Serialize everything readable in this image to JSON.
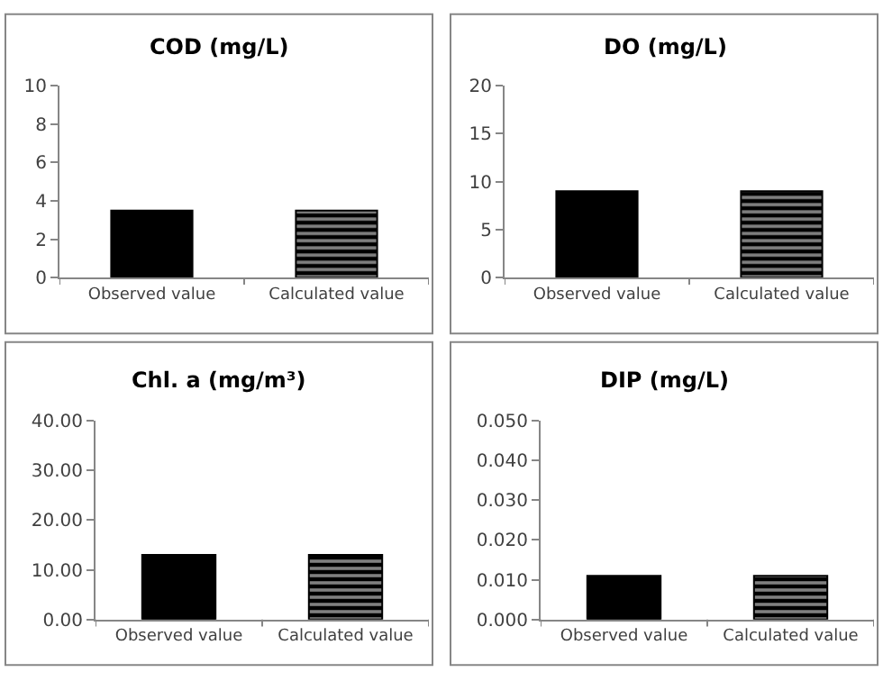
{
  "chart_data": [
    {
      "type": "bar",
      "title": "COD (mg/L)",
      "categories": [
        "Observed value",
        "Calculated value"
      ],
      "values": [
        3.5,
        3.5
      ],
      "colors": [
        "#000000",
        "#000000"
      ],
      "ylim": [
        0,
        10
      ],
      "yticks": [
        0,
        2,
        4,
        6,
        8,
        10
      ],
      "grid": false,
      "legend": false
    },
    {
      "type": "bar",
      "title": "DO (mg/L)",
      "categories": [
        "Observed value",
        "Calculated value"
      ],
      "values": [
        9,
        9
      ],
      "colors": [
        "#000000",
        "#000000"
      ],
      "ylim": [
        0,
        20
      ],
      "yticks": [
        0,
        5,
        10,
        15,
        20
      ],
      "grid": false,
      "legend": false
    },
    {
      "type": "bar",
      "title": "Chl. a (mg/m³)",
      "categories": [
        "Observed value",
        "Calculated value"
      ],
      "values": [
        13,
        13
      ],
      "colors": [
        "#000000",
        "#000000"
      ],
      "ylim": [
        0,
        40
      ],
      "yticks": [
        {
          "value": 0,
          "label": "0.00"
        },
        {
          "value": 10,
          "label": "10.00"
        },
        {
          "value": 20,
          "label": "20.00"
        },
        {
          "value": 30,
          "label": "30.00"
        },
        {
          "value": 40,
          "label": "40.00"
        }
      ],
      "grid": false,
      "legend": false
    },
    {
      "type": "bar",
      "title": "DIP (mg/L)",
      "categories": [
        "Observed value",
        "Calculated value"
      ],
      "values": [
        0.011,
        0.011
      ],
      "colors": [
        "#000000",
        "#000000"
      ],
      "ylim": [
        0,
        0.05
      ],
      "yticks": [
        {
          "value": 0,
          "label": "0.000"
        },
        {
          "value": 0.01,
          "label": "0.010"
        },
        {
          "value": 0.02,
          "label": "0.020"
        },
        {
          "value": 0.03,
          "label": "0.030"
        },
        {
          "value": 0.04,
          "label": "0.040"
        },
        {
          "value": 0.05,
          "label": "0.050"
        }
      ],
      "grid": false,
      "legend": false
    }
  ]
}
